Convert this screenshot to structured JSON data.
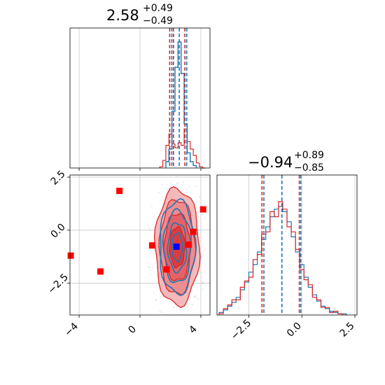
{
  "colors": {
    "blue": "#1f77b4",
    "red": "#d62728",
    "grid": "#c8c8c8",
    "marker_red": "#ff0000",
    "marker_blue": "#0000ff"
  },
  "titles": {
    "param1": {
      "value": "2.58",
      "plus": "+0.49",
      "minus": "−0.49"
    },
    "param2": {
      "value": "−0.94",
      "plus": "+0.89",
      "minus": "−0.85"
    }
  },
  "chart_data": [
    {
      "type": "histogram",
      "panel": "marginal-param1",
      "x_range": [
        -4.6,
        4.6
      ],
      "grid": true,
      "series": [
        {
          "color": "#1f77b4",
          "peak_hist": {
            "bins_x": [
              1.8,
              2.0,
              2.2,
              2.4,
              2.6,
              2.8,
              3.0,
              3.2,
              3.4,
              3.6
            ],
            "heights": [
              0.05,
              0.15,
              0.45,
              0.8,
              1.0,
              0.75,
              0.35,
              0.12,
              0.05,
              0.02
            ]
          },
          "quantile_lines": [
            2.09,
            2.58,
            3.07
          ]
        },
        {
          "color": "#d62728",
          "bins_x": [
            1.4,
            1.6,
            1.8,
            2.0,
            2.2,
            2.4,
            2.6,
            2.8,
            3.0,
            3.2,
            3.4,
            3.6,
            3.8,
            4.0,
            4.2
          ],
          "heights": [
            0.01,
            0.06,
            0.18,
            0.27,
            0.19,
            0.16,
            0.2,
            0.18,
            0.31,
            0.21,
            0.15,
            0.1,
            0.04,
            0.01,
            0.0
          ],
          "quantile_lines": [
            1.95,
            2.2,
            2.95
          ]
        }
      ]
    },
    {
      "type": "scatter",
      "panel": "joint",
      "x_ticks": [
        "−4",
        "0",
        "4"
      ],
      "x_tick_values": [
        -4,
        0,
        4
      ],
      "y_ticks": [
        "2.5",
        "0.0",
        "−2.5"
      ],
      "y_tick_values": [
        2.5,
        0.0,
        -2.5
      ],
      "x_range": [
        -4.6,
        4.6
      ],
      "y_range": [
        -4.0,
        2.6
      ],
      "grid": true,
      "red_points": [
        [
          -4.55,
          -1.2
        ],
        [
          -2.6,
          -1.95
        ],
        [
          -1.35,
          1.85
        ],
        [
          0.8,
          -0.72
        ],
        [
          1.75,
          -1.85
        ],
        [
          3.2,
          -0.68
        ],
        [
          3.5,
          -0.08
        ],
        [
          4.15,
          0.98
        ]
      ],
      "blue_point": [
        2.4,
        -0.78
      ],
      "contour_center": [
        2.45,
        -0.8
      ],
      "contour_radii_x": [
        1.45,
        1.15,
        0.85,
        0.5
      ],
      "contour_radii_y": [
        2.75,
        2.25,
        1.6,
        0.95
      ]
    },
    {
      "type": "histogram",
      "panel": "marginal-param2",
      "x_ticks": [
        "−2.5",
        "0.0",
        "2.5"
      ],
      "x_tick_values": [
        -2.5,
        0.0,
        2.5
      ],
      "x_range": [
        -4.0,
        2.6
      ],
      "grid": true,
      "series": [
        {
          "color": "#1f77b4",
          "bins_x": [
            -3.8,
            -3.6,
            -3.4,
            -3.2,
            -3.0,
            -2.8,
            -2.6,
            -2.4,
            -2.2,
            -2.0,
            -1.8,
            -1.6,
            -1.4,
            -1.2,
            -1.0,
            -0.8,
            -0.6,
            -0.4,
            -0.2,
            0.0,
            0.2,
            0.4,
            0.6,
            0.8,
            1.0,
            1.2,
            1.4,
            1.6,
            1.8,
            2.0
          ],
          "heights": [
            0.02,
            0.04,
            0.07,
            0.1,
            0.14,
            0.2,
            0.26,
            0.34,
            0.4,
            0.5,
            0.6,
            0.7,
            0.78,
            0.84,
            0.86,
            0.82,
            0.74,
            0.62,
            0.5,
            0.4,
            0.3,
            0.22,
            0.16,
            0.11,
            0.07,
            0.05,
            0.03,
            0.02,
            0.01,
            0.01
          ],
          "quantile_lines": [
            -1.79,
            -0.94,
            -0.05
          ]
        },
        {
          "color": "#d62728",
          "bins_x": [
            -3.8,
            -3.6,
            -3.4,
            -3.2,
            -3.0,
            -2.8,
            -2.6,
            -2.4,
            -2.2,
            -2.0,
            -1.8,
            -1.6,
            -1.4,
            -1.2,
            -1.0,
            -0.8,
            -0.6,
            -0.4,
            -0.2,
            0.0,
            0.2,
            0.4,
            0.6,
            0.8,
            1.0,
            1.2,
            1.4,
            1.6,
            1.8,
            2.0
          ],
          "heights": [
            0.01,
            0.05,
            0.08,
            0.12,
            0.12,
            0.22,
            0.27,
            0.3,
            0.44,
            0.48,
            0.64,
            0.66,
            0.82,
            0.78,
            0.9,
            0.84,
            0.7,
            0.66,
            0.52,
            0.36,
            0.28,
            0.24,
            0.14,
            0.12,
            0.06,
            0.06,
            0.02,
            0.03,
            0.01,
            0.0
          ],
          "quantile_lines": [
            -1.88,
            -0.94,
            -0.12
          ]
        }
      ]
    }
  ]
}
